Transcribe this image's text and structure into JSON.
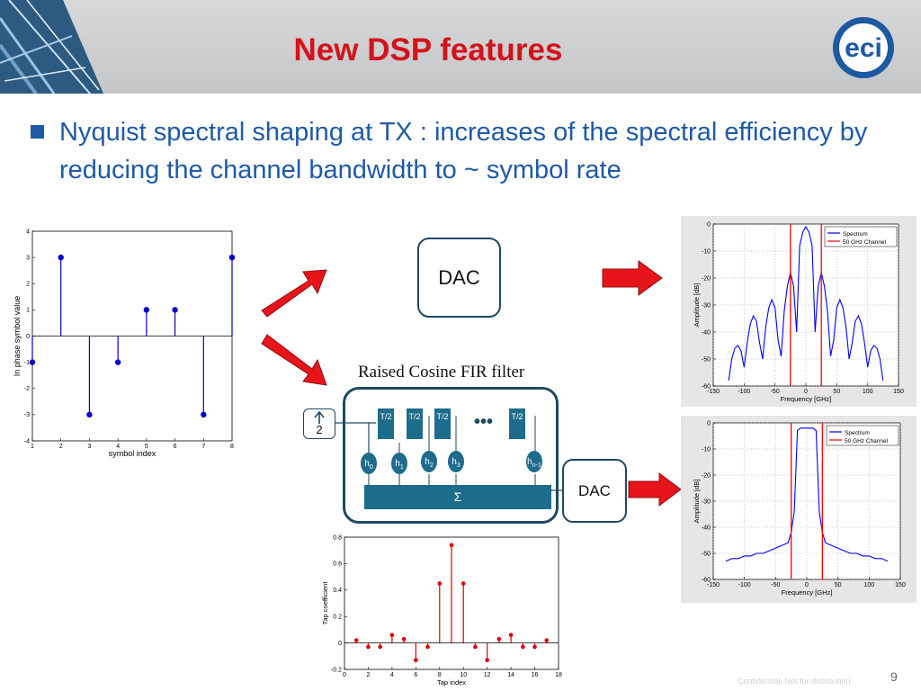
{
  "slide": {
    "title": "New DSP features",
    "bullet": "Nyquist spectral shaping at TX : increases of the spectral efficiency by reducing the channel bandwidth to ~ symbol rate",
    "page_number": "9",
    "confidentiality": "Confidential, Not for distribution",
    "logo_text": "eci",
    "colors": {
      "title": "#d3121b",
      "text": "#1f5aa6",
      "filter": "#1e6c8c",
      "stem_blue": "#0000cc",
      "stem_red": "#dd0000",
      "arrow": "#e8141b"
    }
  },
  "diagram": {
    "dac_top": "DAC",
    "dac_bottom": "DAC",
    "filter_label": "Raised Cosine FIR filter",
    "upsample_label": "2",
    "upsample_icon": "up-arrow-icon",
    "delay_labels": [
      "T/2",
      "T/2",
      "T/2",
      "T/2"
    ],
    "ellipsis": "•••",
    "taps": [
      {
        "h": "h",
        "sub": "0"
      },
      {
        "h": "h",
        "sub": "1"
      },
      {
        "h": "h",
        "sub": "2"
      },
      {
        "h": "h",
        "sub": "3"
      },
      {
        "h": "h",
        "sub": "n-1"
      }
    ],
    "sum_label": "Σ"
  },
  "chart_data": [
    {
      "type": "scatter",
      "style": "stem",
      "xlabel": "symbol index",
      "ylabel": "In phase symbol value",
      "xlim": [
        1,
        8
      ],
      "ylim": [
        -4,
        4
      ],
      "xticks": [
        1,
        2,
        3,
        4,
        5,
        6,
        7,
        8
      ],
      "yticks": [
        -4,
        -3,
        -2,
        -1,
        0,
        1,
        2,
        3,
        4
      ],
      "x": [
        1,
        2,
        3,
        4,
        5,
        6,
        7,
        8
      ],
      "y": [
        -1,
        3,
        -3,
        -1,
        1,
        1,
        -3,
        3
      ]
    },
    {
      "type": "scatter",
      "style": "stem",
      "xlabel": "Tap index",
      "ylabel": "Tap coefficient",
      "xlim": [
        0,
        18
      ],
      "ylim": [
        -0.2,
        0.8
      ],
      "xticks": [
        0,
        2,
        4,
        6,
        8,
        10,
        12,
        14,
        16,
        18
      ],
      "yticks": [
        -0.2,
        0,
        0.2,
        0.4,
        0.6,
        0.8
      ],
      "x": [
        1,
        2,
        3,
        4,
        5,
        6,
        7,
        8,
        9,
        10,
        11,
        12,
        13,
        14,
        15,
        16,
        17
      ],
      "y": [
        0.02,
        -0.03,
        -0.03,
        0.06,
        0.03,
        -0.13,
        -0.03,
        0.45,
        0.74,
        0.45,
        -0.03,
        -0.13,
        0.03,
        0.06,
        -0.03,
        -0.03,
        0.02
      ]
    },
    {
      "type": "line",
      "xlabel": "Frequency [GHz]",
      "ylabel": "Amplitude [dB]",
      "xlim": [
        -150,
        150
      ],
      "ylim": [
        -60,
        0
      ],
      "xticks": [
        -150,
        -100,
        -50,
        0,
        50,
        100,
        150
      ],
      "yticks": [
        0,
        -10,
        -20,
        -30,
        -40,
        -50,
        -60
      ],
      "series": [
        {
          "name": "Spectrum",
          "color": "#0000ff",
          "x": [
            -125,
            -120,
            -115,
            -110,
            -105,
            -100,
            -95,
            -90,
            -85,
            -80,
            -75,
            -70,
            -65,
            -60,
            -55,
            -50,
            -45,
            -40,
            -35,
            -30,
            -25,
            -20,
            -15,
            -10,
            -5,
            0,
            5,
            10,
            15,
            20,
            25,
            30,
            35,
            40,
            45,
            50,
            55,
            60,
            65,
            70,
            75,
            80,
            85,
            90,
            95,
            100,
            105,
            110,
            115,
            120,
            125
          ],
          "y": [
            -58,
            -50,
            -46,
            -45,
            -47,
            -53,
            -44,
            -37,
            -34,
            -36,
            -44,
            -50,
            -38,
            -31,
            -28,
            -31,
            -43,
            -49,
            -32,
            -23,
            -18,
            -23,
            -40,
            -8,
            -3,
            -1,
            -3,
            -8,
            -40,
            -23,
            -18,
            -23,
            -32,
            -49,
            -43,
            -31,
            -28,
            -31,
            -38,
            -50,
            -44,
            -36,
            -34,
            -37,
            -44,
            -53,
            -47,
            -45,
            -46,
            -50,
            -58
          ]
        },
        {
          "name": "50 GHz Channel",
          "color": "#ff0000",
          "x": [
            -25,
            25
          ],
          "y": [
            -60,
            0
          ]
        }
      ]
    },
    {
      "type": "line",
      "xlabel": "Frequency [GHz]",
      "ylabel": "Amplitude [dB]",
      "xlim": [
        -150,
        150
      ],
      "ylim": [
        -60,
        0
      ],
      "xticks": [
        -150,
        -100,
        -50,
        0,
        50,
        100,
        150
      ],
      "yticks": [
        0,
        -10,
        -20,
        -30,
        -40,
        -50,
        -60
      ],
      "series": [
        {
          "name": "Spectrum",
          "color": "#0000ff",
          "x": [
            -130,
            -120,
            -110,
            -100,
            -90,
            -80,
            -70,
            -60,
            -50,
            -40,
            -30,
            -25,
            -20,
            -15,
            -10,
            -5,
            0,
            5,
            10,
            15,
            20,
            25,
            30,
            40,
            50,
            60,
            70,
            80,
            90,
            100,
            110,
            120,
            130
          ],
          "y": [
            -53,
            -52,
            -52,
            -51,
            -51,
            -50,
            -50,
            -49,
            -48,
            -47,
            -46,
            -42,
            -34,
            -3,
            -2,
            -2,
            -2,
            -2,
            -2,
            -3,
            -34,
            -42,
            -46,
            -47,
            -48,
            -49,
            -50,
            -50,
            -51,
            -51,
            -52,
            -52,
            -53
          ]
        },
        {
          "name": "50 GHz Channel",
          "color": "#ff0000",
          "x": [
            -25,
            25
          ],
          "y": [
            -60,
            0
          ]
        }
      ]
    }
  ]
}
